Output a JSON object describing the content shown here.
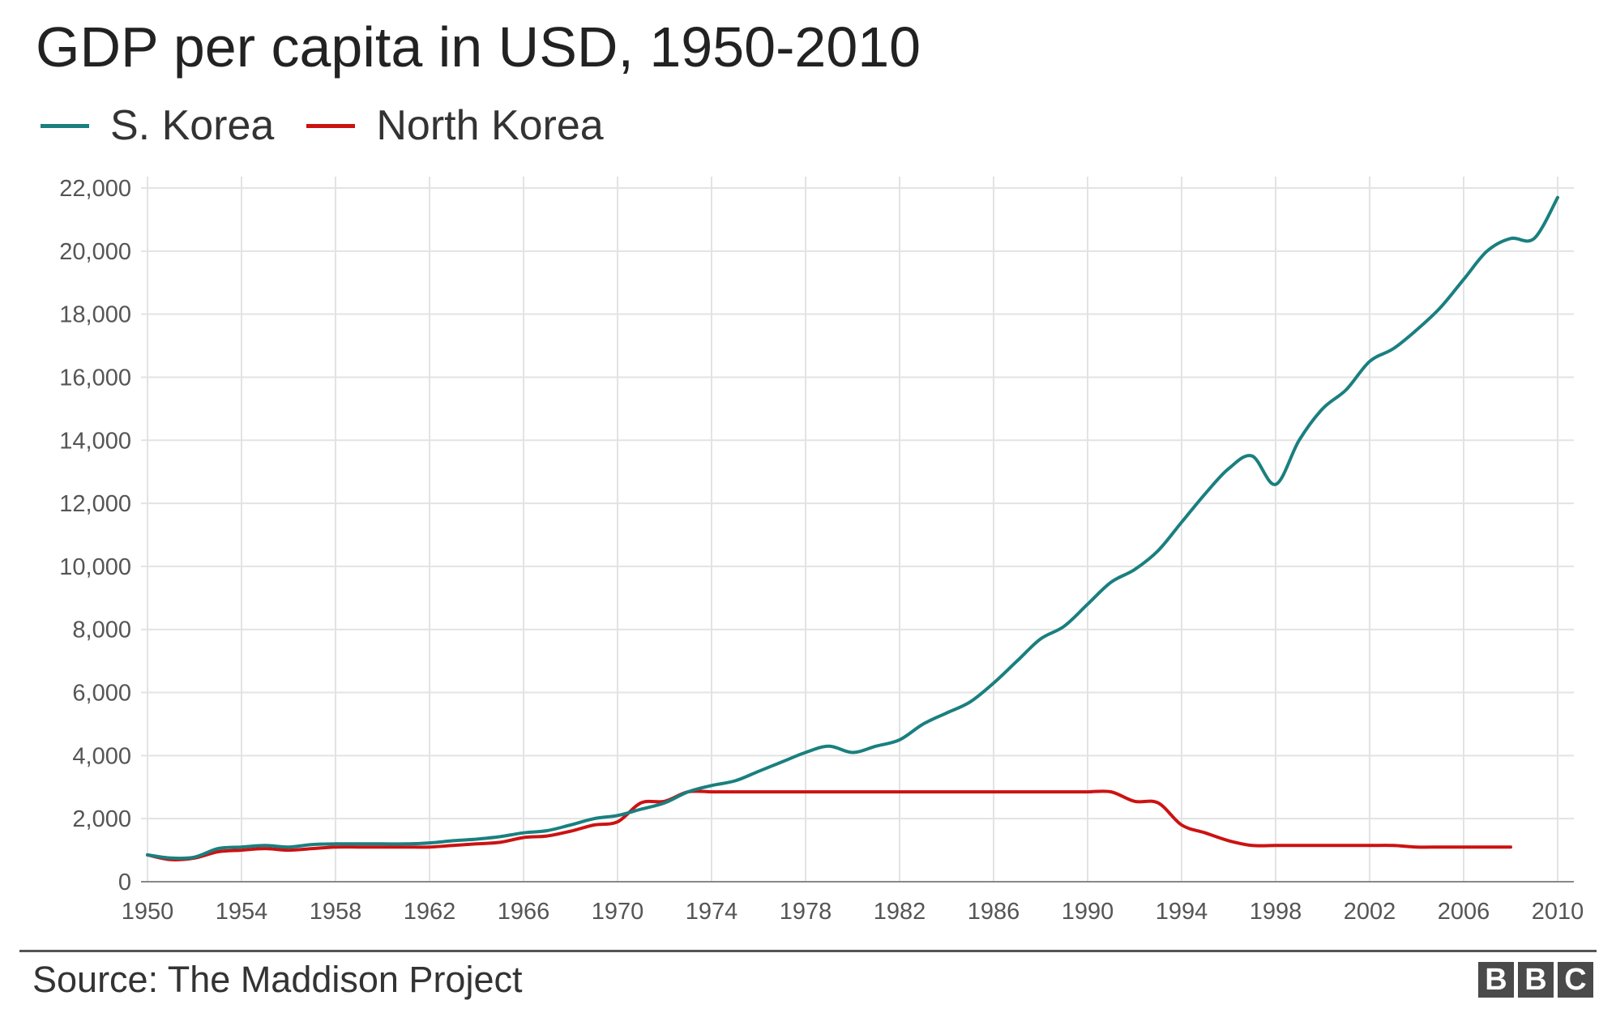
{
  "chart_data": {
    "type": "line",
    "title": "GDP per capita in USD, 1950-2010",
    "xlabel": "",
    "ylabel": "",
    "xlim": [
      1950,
      2010
    ],
    "ylim": [
      0,
      22000
    ],
    "x_ticks": [
      1950,
      1954,
      1958,
      1962,
      1966,
      1970,
      1974,
      1978,
      1982,
      1986,
      1990,
      1994,
      1998,
      2002,
      2006,
      2010
    ],
    "y_ticks": [
      0,
      2000,
      4000,
      6000,
      8000,
      10000,
      12000,
      14000,
      16000,
      18000,
      20000,
      22000
    ],
    "y_tick_labels": [
      "0",
      "2,000",
      "4,000",
      "6,000",
      "8,000",
      "10,000",
      "12,000",
      "14,000",
      "16,000",
      "18,000",
      "20,000",
      "22,000"
    ],
    "grid": true,
    "legend_position": "top-left",
    "series": [
      {
        "name": "S. Korea",
        "color": "#1a7f7f",
        "x": [
          1950,
          1951,
          1952,
          1953,
          1954,
          1955,
          1956,
          1957,
          1958,
          1959,
          1960,
          1961,
          1962,
          1963,
          1964,
          1965,
          1966,
          1967,
          1968,
          1969,
          1970,
          1971,
          1972,
          1973,
          1974,
          1975,
          1976,
          1977,
          1978,
          1979,
          1980,
          1981,
          1982,
          1983,
          1984,
          1985,
          1986,
          1987,
          1988,
          1989,
          1990,
          1991,
          1992,
          1993,
          1994,
          1995,
          1996,
          1997,
          1998,
          1999,
          2000,
          2001,
          2002,
          2003,
          2004,
          2005,
          2006,
          2007,
          2008,
          2009,
          2010
        ],
        "values": [
          850,
          750,
          780,
          1050,
          1100,
          1150,
          1100,
          1180,
          1200,
          1200,
          1200,
          1200,
          1230,
          1300,
          1350,
          1430,
          1550,
          1620,
          1800,
          2000,
          2100,
          2300,
          2500,
          2850,
          3050,
          3200,
          3500,
          3800,
          4100,
          4300,
          4100,
          4300,
          4500,
          5000,
          5350,
          5700,
          6300,
          7000,
          7700,
          8100,
          8800,
          9500,
          9900,
          10500,
          11400,
          12300,
          13100,
          13500,
          12600,
          14000,
          15000,
          15600,
          16500,
          16900,
          17500,
          18200,
          19100,
          20000,
          20400,
          20400,
          21700
        ]
      },
      {
        "name": "North Korea",
        "color": "#cc1212",
        "x": [
          1950,
          1951,
          1952,
          1953,
          1954,
          1955,
          1956,
          1957,
          1958,
          1959,
          1960,
          1961,
          1962,
          1963,
          1964,
          1965,
          1966,
          1967,
          1968,
          1969,
          1970,
          1971,
          1972,
          1973,
          1974,
          1975,
          1976,
          1977,
          1978,
          1979,
          1980,
          1981,
          1982,
          1983,
          1984,
          1985,
          1986,
          1987,
          1988,
          1989,
          1990,
          1991,
          1992,
          1993,
          1994,
          1995,
          1996,
          1997,
          1998,
          1999,
          2000,
          2001,
          2002,
          2003,
          2004,
          2005,
          2006,
          2007,
          2008
        ],
        "values": [
          850,
          700,
          750,
          950,
          1000,
          1050,
          1000,
          1050,
          1100,
          1100,
          1100,
          1100,
          1100,
          1150,
          1200,
          1250,
          1400,
          1450,
          1600,
          1800,
          1900,
          2500,
          2550,
          2850,
          2850,
          2850,
          2850,
          2850,
          2850,
          2850,
          2850,
          2850,
          2850,
          2850,
          2850,
          2850,
          2850,
          2850,
          2850,
          2850,
          2850,
          2850,
          2550,
          2500,
          1800,
          1550,
          1300,
          1150,
          1150,
          1150,
          1150,
          1150,
          1150,
          1150,
          1100,
          1100,
          1100,
          1100,
          1100
        ]
      }
    ],
    "source": "Source: The Maddison Project",
    "logo": "BBC"
  }
}
